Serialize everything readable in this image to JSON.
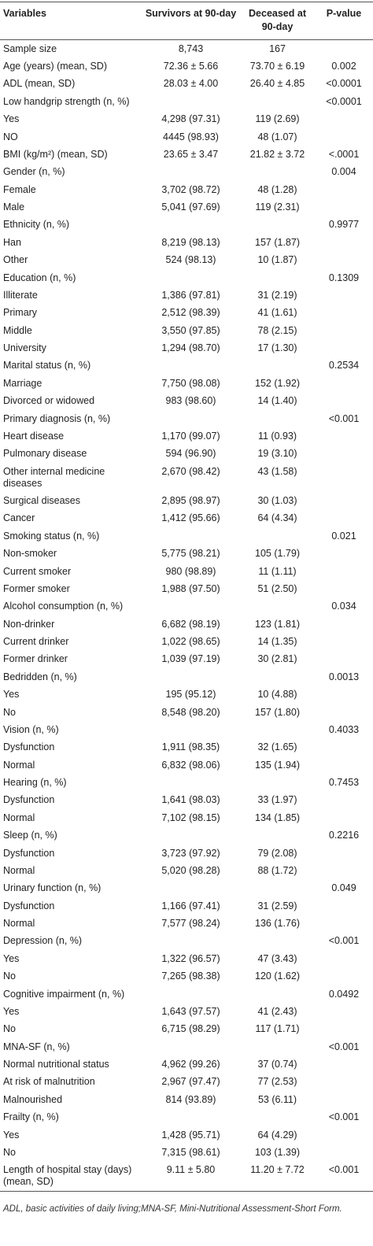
{
  "table": {
    "header": [
      "Variables",
      "Survivors at 90-day",
      "Deceased at 90-day",
      "P-value"
    ],
    "rows": [
      [
        "Sample size",
        "8,743",
        "167",
        null
      ],
      [
        "Age (years) (mean, SD)",
        "72.36 ± 5.66",
        "73.70 ± 6.19",
        "0.002"
      ],
      [
        "ADL (mean, SD)",
        "28.03 ± 4.00",
        "26.40 ± 4.85",
        "<0.0001"
      ],
      [
        "Low handgrip strength (n, %)",
        null,
        null,
        "<0.0001"
      ],
      [
        "Yes",
        "4,298 (97.31)",
        "119 (2.69)",
        null
      ],
      [
        "NO",
        "4445 (98.93)",
        "48 (1.07)",
        null
      ],
      [
        "BMI (kg/m²) (mean, SD)",
        "23.65 ± 3.47",
        "21.82 ± 3.72",
        "<.0001"
      ],
      [
        "Gender (n, %)",
        null,
        null,
        "0.004"
      ],
      [
        "Female",
        "3,702 (98.72)",
        "48 (1.28)",
        null
      ],
      [
        "Male",
        "5,041 (97.69)",
        "119 (2.31)",
        null
      ],
      [
        "Ethnicity (n, %)",
        null,
        null,
        "0.9977"
      ],
      [
        "Han",
        "8,219 (98.13)",
        "157 (1.87)",
        null
      ],
      [
        "Other",
        "524 (98.13)",
        "10 (1.87)",
        null
      ],
      [
        "Education (n, %)",
        null,
        null,
        "0.1309"
      ],
      [
        "Illiterate",
        "1,386 (97.81)",
        "31 (2.19)",
        null
      ],
      [
        "Primary",
        "2,512 (98.39)",
        "41 (1.61)",
        null
      ],
      [
        "Middle",
        "3,550 (97.85)",
        "78 (2.15)",
        null
      ],
      [
        "University",
        "1,294 (98.70)",
        "17 (1.30)",
        null
      ],
      [
        "Marital status (n, %)",
        null,
        null,
        "0.2534"
      ],
      [
        "Marriage",
        "7,750 (98.08)",
        "152 (1.92)",
        null
      ],
      [
        "Divorced or widowed",
        "983 (98.60)",
        "14 (1.40)",
        null
      ],
      [
        "Primary diagnosis (n, %)",
        null,
        null,
        "<0.001"
      ],
      [
        "Heart disease",
        "1,170 (99.07)",
        "11 (0.93)",
        null
      ],
      [
        "Pulmonary disease",
        "594 (96.90)",
        "19 (3.10)",
        null
      ],
      [
        "Other internal medicine diseases",
        "2,670 (98.42)",
        "43 (1.58)",
        null
      ],
      [
        "Surgical diseases",
        "2,895 (98.97)",
        "30 (1.03)",
        null
      ],
      [
        "Cancer",
        "1,412 (95.66)",
        "64 (4.34)",
        null
      ],
      [
        "Smoking status (n, %)",
        null,
        null,
        "0.021"
      ],
      [
        "Non-smoker",
        "5,775 (98.21)",
        "105 (1.79)",
        null
      ],
      [
        "Current smoker",
        "980 (98.89)",
        "11 (1.11)",
        null
      ],
      [
        "Former smoker",
        "1,988 (97.50)",
        "51 (2.50)",
        null
      ],
      [
        "Alcohol consumption (n, %)",
        null,
        null,
        "0.034"
      ],
      [
        "Non-drinker",
        "6,682 (98.19)",
        "123 (1.81)",
        null
      ],
      [
        "Current drinker",
        "1,022 (98.65)",
        "14 (1.35)",
        null
      ],
      [
        "Former drinker",
        "1,039 (97.19)",
        "30 (2.81)",
        null
      ],
      [
        "Bedridden (n, %)",
        null,
        null,
        "0.0013"
      ],
      [
        "Yes",
        "195 (95.12)",
        "10 (4.88)",
        null
      ],
      [
        "No",
        "8,548 (98.20)",
        "157 (1.80)",
        null
      ],
      [
        "Vision (n, %)",
        null,
        null,
        "0.4033"
      ],
      [
        "Dysfunction",
        "1,911 (98.35)",
        "32 (1.65)",
        null
      ],
      [
        "Normal",
        "6,832 (98.06)",
        "135 (1.94)",
        null
      ],
      [
        "Hearing (n, %)",
        null,
        null,
        "0.7453"
      ],
      [
        "Dysfunction",
        "1,641 (98.03)",
        "33 (1.97)",
        null
      ],
      [
        "Normal",
        "7,102 (98.15)",
        "134 (1.85)",
        null
      ],
      [
        "Sleep (n, %)",
        null,
        null,
        "0.2216"
      ],
      [
        "Dysfunction",
        "3,723 (97.92)",
        "79 (2.08)",
        null
      ],
      [
        "Normal",
        "5,020 (98.28)",
        "88 (1.72)",
        null
      ],
      [
        "Urinary function (n, %)",
        null,
        null,
        "0.049"
      ],
      [
        "Dysfunction",
        "1,166 (97.41)",
        "31 (2.59)",
        null
      ],
      [
        "Normal",
        "7,577 (98.24)",
        "136 (1.76)",
        null
      ],
      [
        "Depression (n, %)",
        null,
        null,
        "<0.001"
      ],
      [
        "Yes",
        "1,322 (96.57)",
        "47 (3.43)",
        null
      ],
      [
        "No",
        "7,265 (98.38)",
        "120 (1.62)",
        null
      ],
      [
        "Cognitive impairment (n, %)",
        null,
        null,
        "0.0492"
      ],
      [
        "Yes",
        "1,643 (97.57)",
        "41 (2.43)",
        null
      ],
      [
        "No",
        "6,715 (98.29)",
        "117 (1.71)",
        null
      ],
      [
        "MNA-SF (n, %)",
        null,
        null,
        "<0.001"
      ],
      [
        "Normal nutritional status",
        "4,962 (99.26)",
        "37 (0.74)",
        null
      ],
      [
        "At risk of malnutrition",
        "2,967 (97.47)",
        "77 (2.53)",
        null
      ],
      [
        "Malnourished",
        "814 (93.89)",
        "53 (6.11)",
        null
      ],
      [
        "Frailty (n, %)",
        null,
        null,
        "<0.001"
      ],
      [
        "Yes",
        "1,428 (95.71)",
        "64 (4.29)",
        null
      ],
      [
        "No",
        "7,315 (98.61)",
        "103 (1.39)",
        null
      ],
      [
        "Length of hospital stay (days) (mean, SD)",
        "9.11 ± 5.80",
        "11.20 ± 7.72",
        "<0.001"
      ]
    ]
  },
  "footnote": "ADL, basic activities of daily living;MNA-SF, Mini-Nutritional Assessment-Short Form."
}
